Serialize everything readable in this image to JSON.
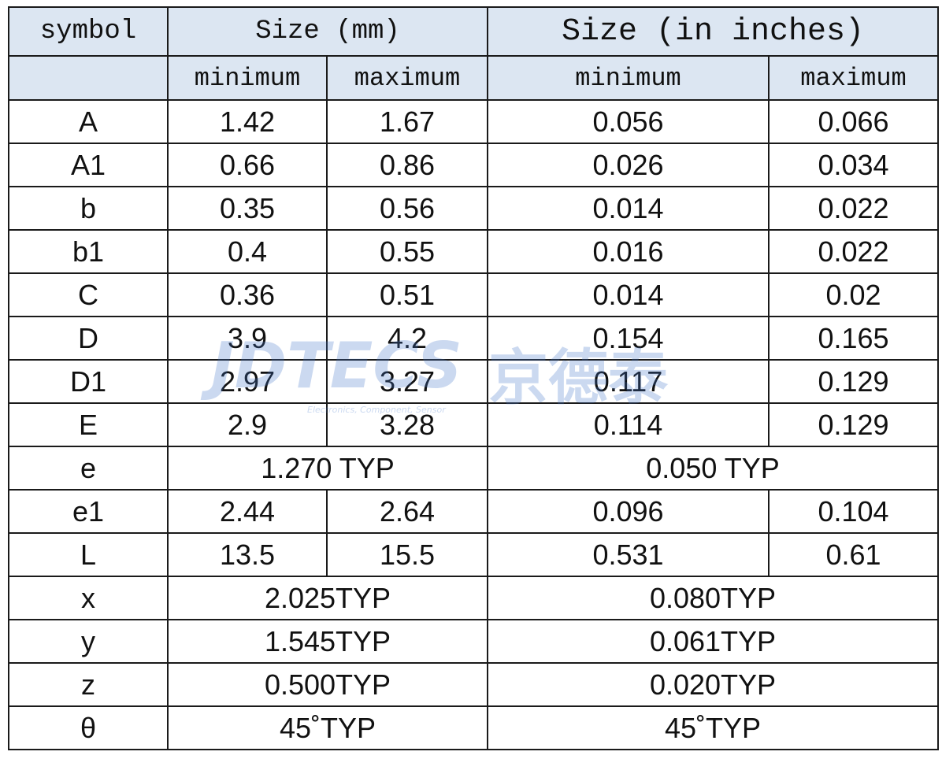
{
  "table": {
    "header": [
      [
        "symbol",
        "Size (mm)",
        "Size (in inches)"
      ],
      [
        "minimum",
        "maximum",
        "minimum",
        "maximum"
      ]
    ],
    "rows": [
      [
        "A",
        "1.42",
        "1.67",
        "0.056",
        "0.066"
      ],
      [
        "A1",
        "0.66",
        "0.86",
        "0.026",
        "0.034"
      ],
      [
        "b",
        "0.35",
        "0.56",
        "0.014",
        "0.022"
      ],
      [
        "b1",
        "0.4",
        "0.55",
        "0.016",
        "0.022"
      ],
      [
        "C",
        "0.36",
        "0.51",
        "0.014",
        "0.02"
      ],
      [
        "D",
        "3.9",
        "4.2",
        "0.154",
        "0.165"
      ],
      [
        "D1",
        "2.97",
        "3.27",
        "0.117",
        "0.129"
      ],
      [
        "E",
        "2.9",
        "3.28",
        "0.114",
        "0.129"
      ],
      [
        "e",
        "1.270 TYP",
        "0.050 TYP"
      ],
      [
        "e1",
        "2.44",
        "2.64",
        "0.096",
        "0.104"
      ],
      [
        "L",
        "13.5",
        "15.5",
        "0.531",
        "0.61"
      ],
      [
        "x",
        "2.025TYP",
        "0.080TYP"
      ],
      [
        "y",
        "1.545TYP",
        "0.061TYP"
      ],
      [
        "z",
        "0.500TYP",
        "0.020TYP"
      ],
      [
        "θ",
        "45˚TYP",
        "45˚TYP"
      ]
    ]
  },
  "watermark": {
    "brand": "JDTECS",
    "chinese": "京德泰",
    "tagline": "Electronics, Component, Sensor"
  }
}
